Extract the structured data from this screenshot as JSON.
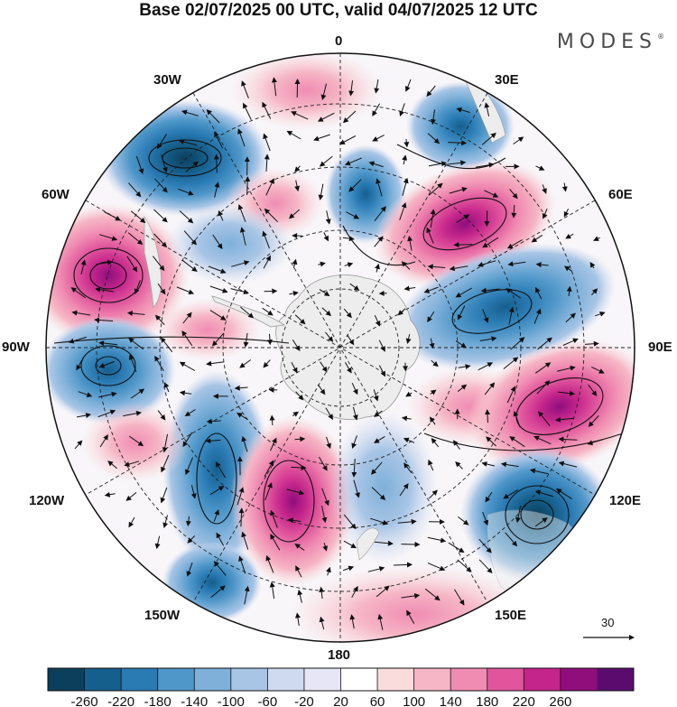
{
  "header": {
    "title": "Base 02/07/2025 00 UTC, valid 04/07/2025 12 UTC",
    "brand": "MODES",
    "brand_mark": "®"
  },
  "map": {
    "projection": "south-polar-stereographic",
    "longitude_labels": {
      "top": "0",
      "bottom": "180",
      "left": "90W",
      "right": "90E",
      "upper_left_1": "30W",
      "upper_left_2": "60W",
      "upper_right_1": "30E",
      "upper_right_2": "60E",
      "lower_left_1": "120W",
      "lower_left_2": "150W",
      "lower_right_1": "120E",
      "lower_right_2": "150E"
    },
    "land_color": "#ededed",
    "gridlines": "dashed"
  },
  "vector_reference": {
    "value": "30"
  },
  "colorbar": {
    "ticks": [
      "-260",
      "-220",
      "-180",
      "-140",
      "-100",
      "-60",
      "-20",
      "20",
      "60",
      "100",
      "140",
      "180",
      "220",
      "260"
    ],
    "colors": [
      "#0c3f5c",
      "#155f8c",
      "#2a7ab3",
      "#4f97c9",
      "#7eb0d9",
      "#a8c5e6",
      "#cfd9ef",
      "#e6e6f4",
      "#ffffff",
      "#fbdcdc",
      "#f6b6c6",
      "#f08cb2",
      "#e0559c",
      "#c4258b",
      "#8f0e7c",
      "#5a0c6e"
    ]
  }
}
